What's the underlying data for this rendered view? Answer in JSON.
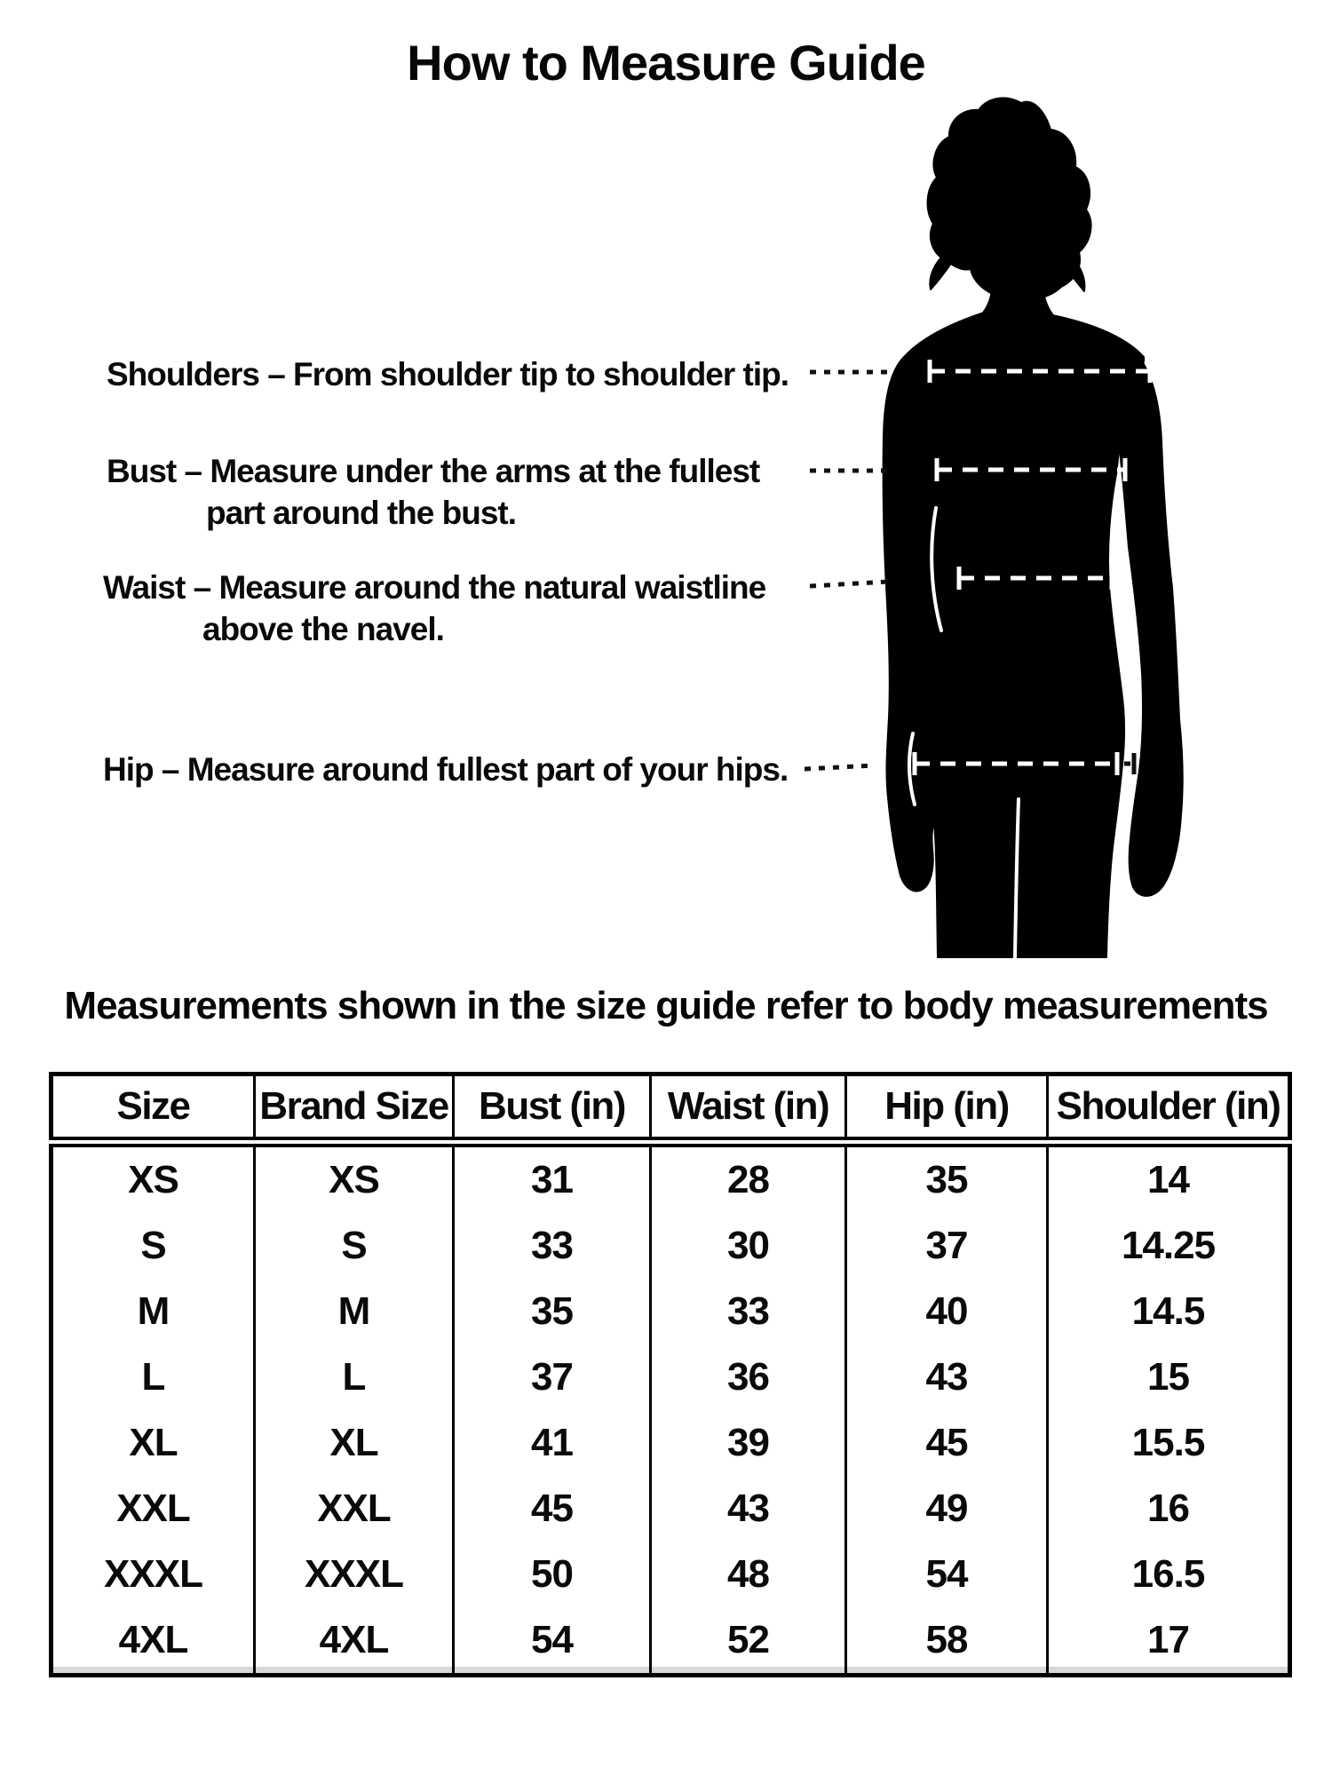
{
  "page": {
    "title": "How to Measure Guide",
    "subtitle": "Measurements shown in the size guide refer to body measurements"
  },
  "figure": {
    "description": "female-body-back-silhouette",
    "measure_lines": [
      "Shoulders",
      "Bust",
      "Waist",
      "Hip"
    ],
    "labels": [
      {
        "id": "shoulders",
        "lines": [
          "Shoulders – From shoulder tip to shoulder tip."
        ]
      },
      {
        "id": "bust",
        "lines": [
          "Bust – Measure under the arms at the fullest",
          "part around the bust."
        ]
      },
      {
        "id": "waist",
        "lines": [
          "Waist – Measure around the natural waistline",
          "above the navel."
        ]
      },
      {
        "id": "hip",
        "lines": [
          "Hip – Measure around fullest part of your hips."
        ]
      }
    ]
  },
  "size_chart": {
    "columns": [
      "Size",
      "Brand Size",
      "Bust (in)",
      "Waist (in)",
      "Hip (in)",
      "Shoulder (in)"
    ],
    "rows": [
      [
        "XS",
        "XS",
        "31",
        "28",
        "35",
        "14"
      ],
      [
        "S",
        "S",
        "33",
        "30",
        "37",
        "14.25"
      ],
      [
        "M",
        "M",
        "35",
        "33",
        "40",
        "14.5"
      ],
      [
        "L",
        "L",
        "37",
        "36",
        "43",
        "15"
      ],
      [
        "XL",
        "XL",
        "41",
        "39",
        "45",
        "15.5"
      ],
      [
        "XXL",
        "XXL",
        "45",
        "43",
        "49",
        "16"
      ],
      [
        "XXXL",
        "XXXL",
        "50",
        "48",
        "54",
        "16.5"
      ],
      [
        "4XL",
        "4XL",
        "54",
        "52",
        "58",
        "17"
      ]
    ]
  },
  "colors": {
    "background": "#ffffff",
    "text": "#0a0a0a",
    "silhouette": "#000000",
    "measure_dash": "#ffffff"
  }
}
